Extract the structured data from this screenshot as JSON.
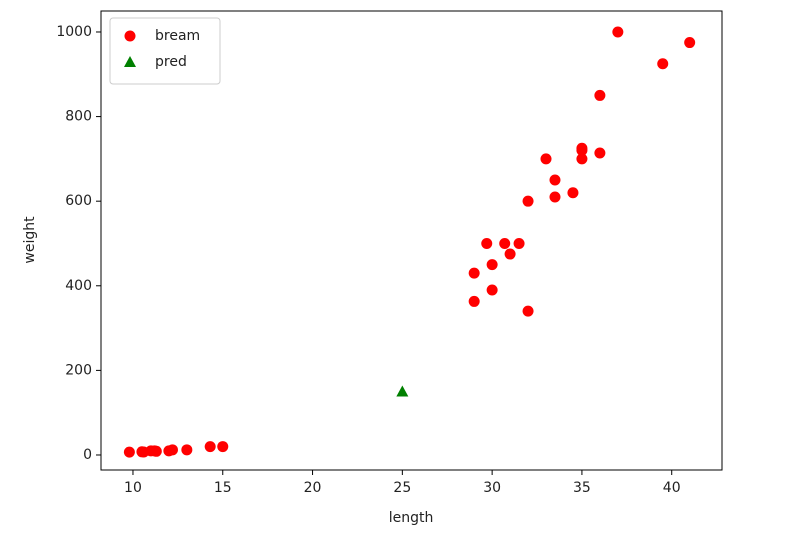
{
  "chart_data": {
    "type": "scatter",
    "xlabel": "length",
    "ylabel": "weight",
    "xlim": [
      8.22,
      42.8
    ],
    "ylim": [
      -35.5,
      1049.6
    ],
    "xticks": [
      10,
      15,
      20,
      25,
      30,
      35,
      40
    ],
    "yticks": [
      0,
      200,
      400,
      600,
      800,
      1000
    ],
    "legend": "upper left",
    "series": [
      {
        "name": "bream",
        "color": "#ff0000",
        "marker": "circle",
        "x": [
          9.8,
          10.5,
          10.6,
          11.0,
          11.2,
          11.3,
          12.0,
          12.2,
          13.0,
          14.3,
          15.0,
          29.0,
          29.0,
          29.7,
          30.0,
          30.0,
          30.7,
          31.0,
          31.5,
          32.0,
          32.0,
          33.0,
          33.5,
          33.5,
          34.5,
          35.0,
          35.0,
          35.0,
          36.0,
          36.0,
          37.0,
          39.5,
          41.0
        ],
        "values": [
          6.7,
          7.5,
          7.0,
          9.7,
          9.8,
          8.7,
          9.8,
          12.2,
          12.2,
          19.7,
          19.9,
          363,
          430,
          500,
          390,
          450,
          500,
          475,
          500,
          340,
          600,
          700,
          610,
          650,
          620,
          700,
          725,
          720,
          714,
          850,
          1000,
          925,
          975
        ]
      },
      {
        "name": "pred",
        "color": "#008000",
        "marker": "triangle",
        "x": [
          25
        ],
        "values": [
          150
        ]
      }
    ]
  }
}
